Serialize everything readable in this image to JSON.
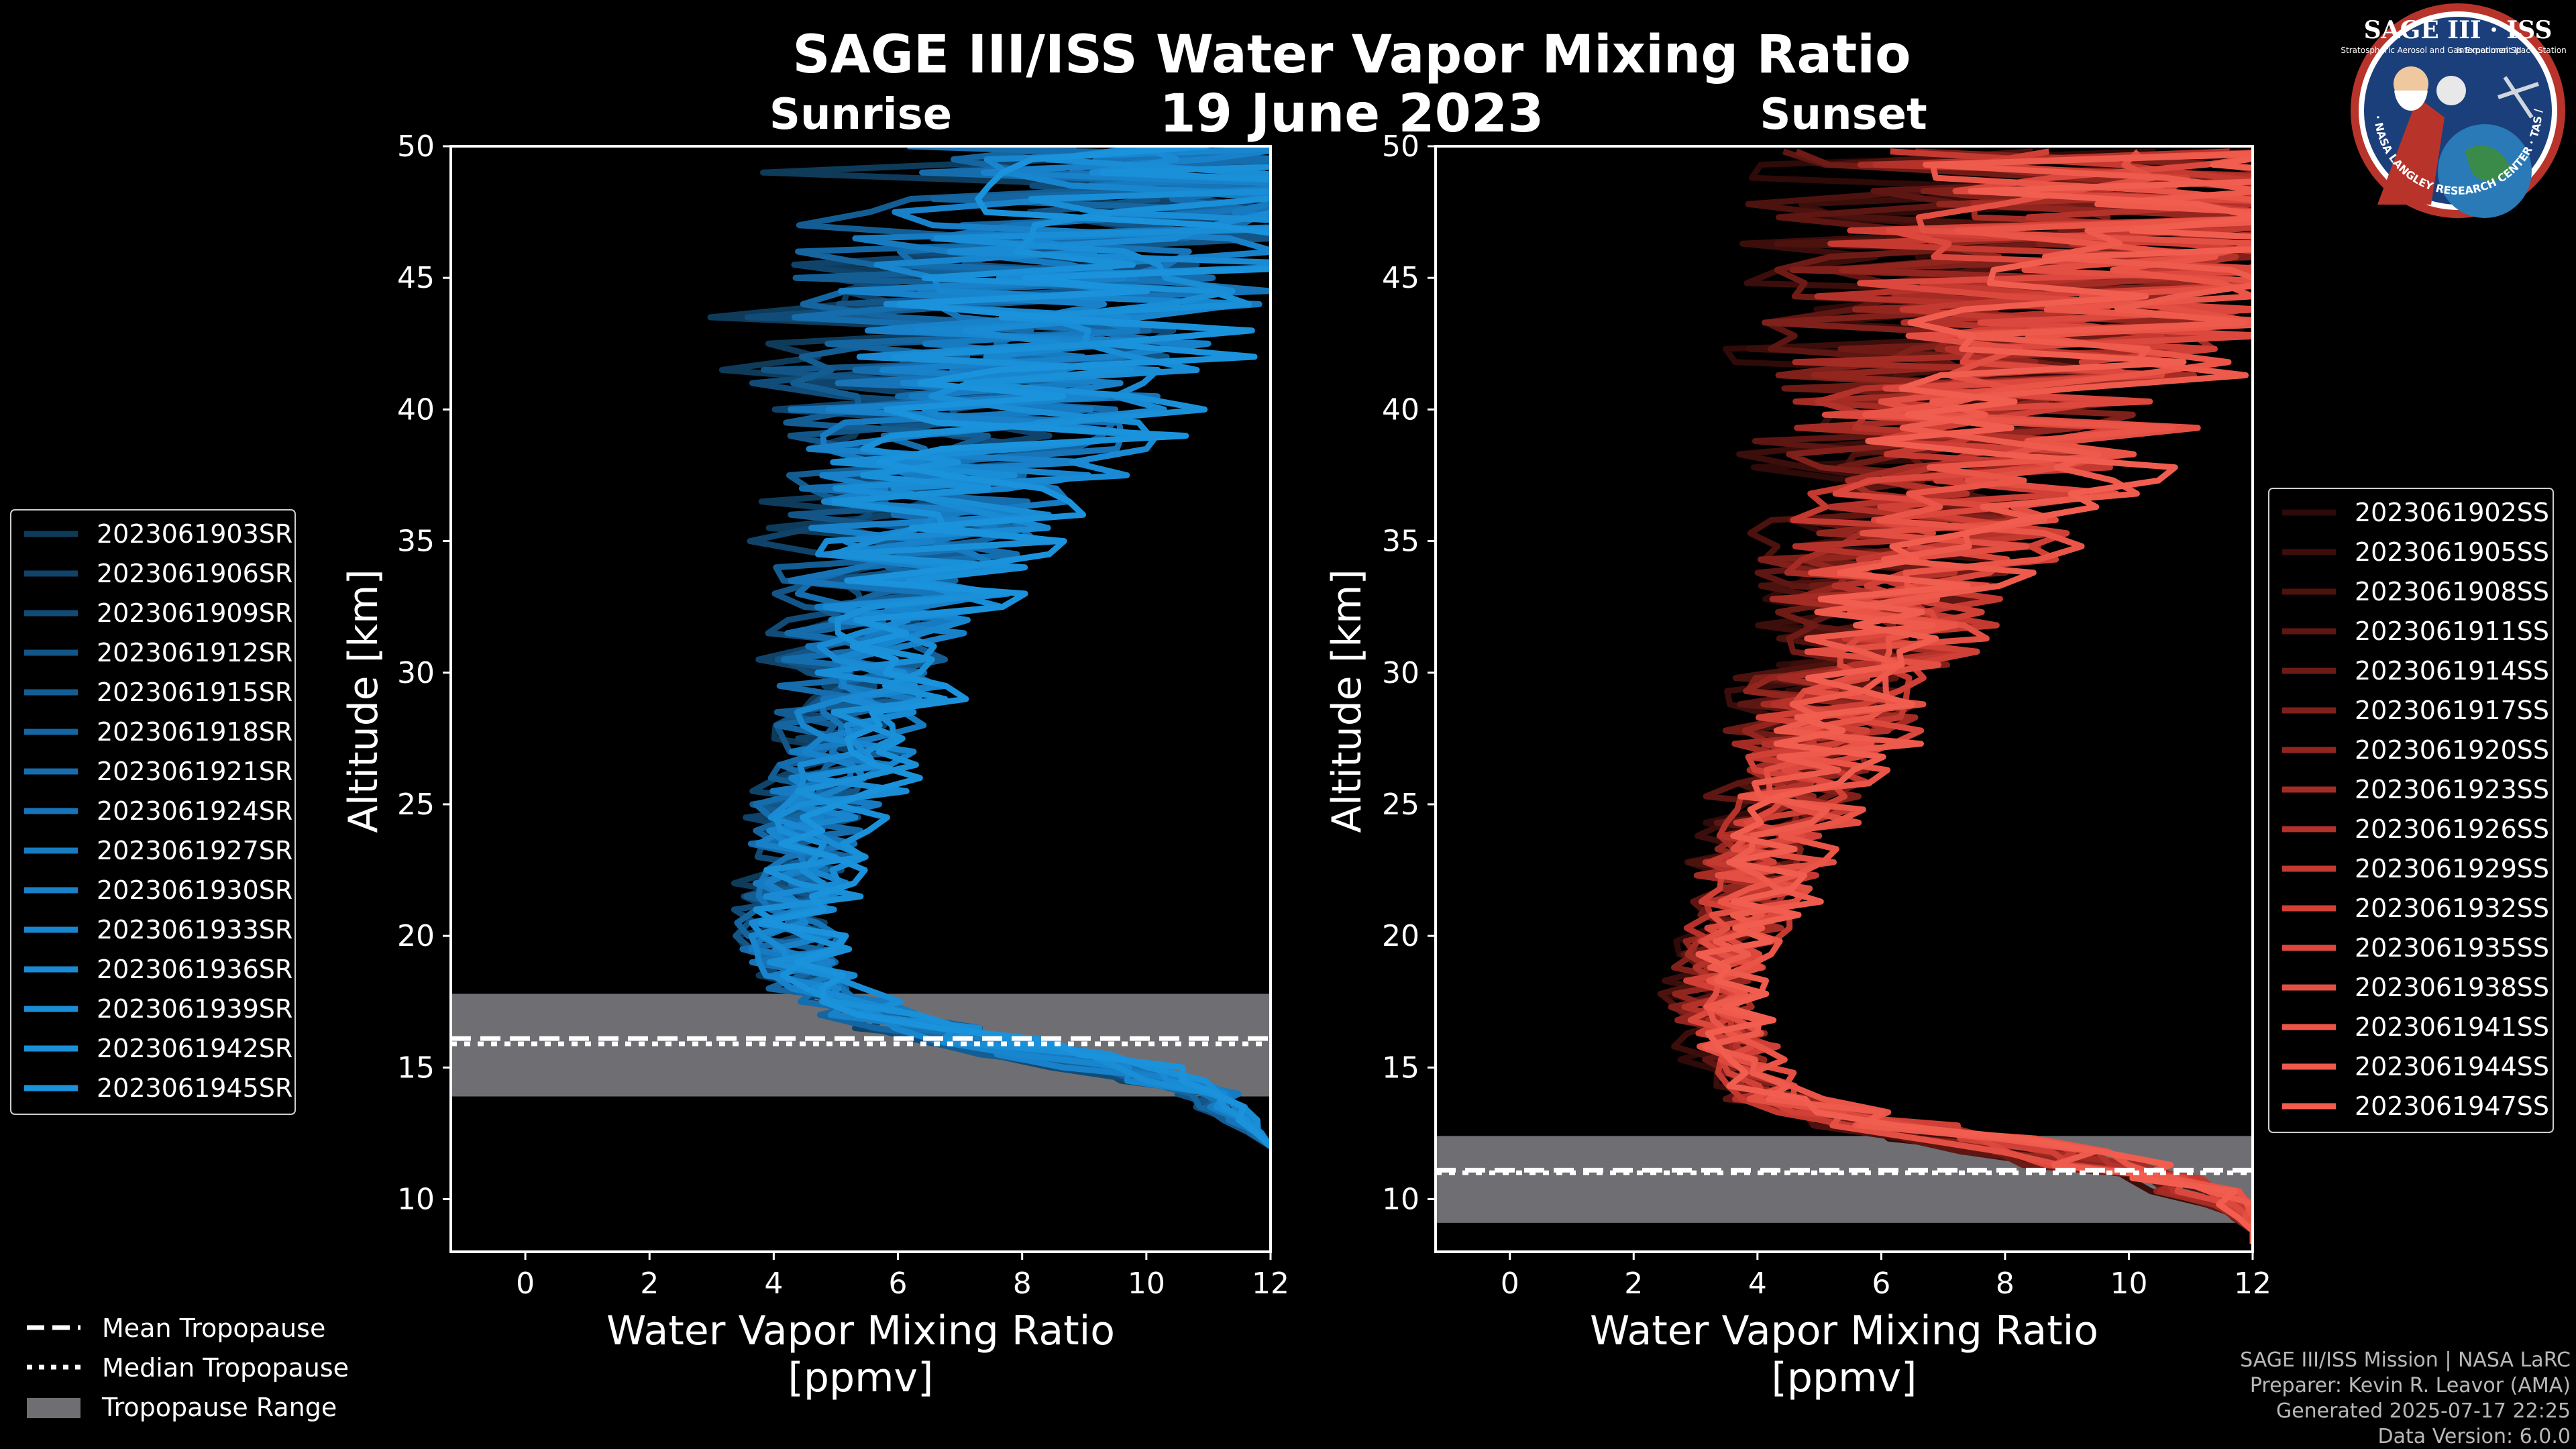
{
  "title": "SAGE III/ISS Water Vapor Mixing Ratio",
  "date": "19 June 2023",
  "logo": {
    "line1": "SAGE III",
    "line2": "ISS",
    "ring": "BALL · NASA LANGLEY RESEARCH CENTER · TAS / ESA",
    "sub1": "Stratospheric Aerosol and Gas Experiment III",
    "sub2": "International Space Station"
  },
  "legend_common": {
    "mean": "Mean Tropopause",
    "median": "Median Tropopause",
    "range": "Tropopause Range"
  },
  "credits": [
    "SAGE III/ISS Mission | NASA LaRC",
    "Preparer: Kevin R. Leavor (AMA)",
    "Generated 2025-07-17 22:25",
    "Data Version: 6.0.0"
  ],
  "colors": {
    "background": "#000000",
    "sunrise": "#1a8fd1",
    "sunset": "#ef5b4b",
    "range": "#6f6f73"
  },
  "chart_data": [
    {
      "type": "line",
      "subtitle": "Sunrise",
      "xlabel": "Water Vapor Mixing Ratio\n[ppmv]",
      "ylabel": "Altitude [km]",
      "xlim": [
        -1.2,
        12
      ],
      "ylim": [
        8,
        50
      ],
      "xticks": [
        0,
        2,
        4,
        6,
        8,
        10,
        12
      ],
      "yticks": [
        10,
        15,
        20,
        25,
        30,
        35,
        40,
        45,
        50
      ],
      "tropopause": {
        "mean": 16.1,
        "median": 15.9,
        "range": [
          13.9,
          17.8
        ]
      },
      "profile_shape": {
        "altitudes": [
          8,
          12,
          14,
          15,
          16,
          17,
          18,
          20,
          24,
          28,
          32,
          36,
          40,
          44,
          48,
          50
        ],
        "center": [
          12,
          12,
          11,
          9.5,
          7.5,
          5.6,
          4.6,
          4.2,
          4.6,
          5.3,
          5.8,
          6.4,
          7.2,
          8.2,
          9.5,
          10
        ],
        "spread": [
          0.0,
          0.0,
          0.4,
          0.8,
          0.9,
          0.7,
          0.6,
          0.7,
          0.8,
          1.0,
          1.3,
          1.8,
          2.5,
          3.2,
          3.6,
          3.8
        ]
      },
      "series": [
        {
          "name": "2023061903SR",
          "color": "#0e3b5a"
        },
        {
          "name": "2023061906SR",
          "color": "#10436a"
        },
        {
          "name": "2023061909SR",
          "color": "#114c78"
        },
        {
          "name": "2023061912SR",
          "color": "#135586"
        },
        {
          "name": "2023061915SR",
          "color": "#145d93"
        },
        {
          "name": "2023061918SR",
          "color": "#1565a0"
        },
        {
          "name": "2023061921SR",
          "color": "#166dad"
        },
        {
          "name": "2023061924SR",
          "color": "#1774b8"
        },
        {
          "name": "2023061927SR",
          "color": "#177bc2"
        },
        {
          "name": "2023061930SR",
          "color": "#1881c9"
        },
        {
          "name": "2023061933SR",
          "color": "#1886cf"
        },
        {
          "name": "2023061936SR",
          "color": "#198ad3"
        },
        {
          "name": "2023061939SR",
          "color": "#198dd6"
        },
        {
          "name": "2023061942SR",
          "color": "#1a90d9"
        },
        {
          "name": "2023061945SR",
          "color": "#1a93dc"
        }
      ]
    },
    {
      "type": "line",
      "subtitle": "Sunset",
      "xlabel": "Water Vapor Mixing Ratio\n[ppmv]",
      "ylabel": "Altitude [km]",
      "xlim": [
        -1.2,
        12
      ],
      "ylim": [
        8,
        50
      ],
      "xticks": [
        0,
        2,
        4,
        6,
        8,
        10,
        12
      ],
      "yticks": [
        10,
        15,
        20,
        25,
        30,
        35,
        40,
        45,
        50
      ],
      "tropopause": {
        "mean": 11.1,
        "median": 11.0,
        "range": [
          9.1,
          12.4
        ]
      },
      "profile_shape": {
        "altitudes": [
          8,
          9,
          10,
          11,
          12,
          13,
          14,
          16,
          18,
          20,
          24,
          28,
          32,
          36,
          40,
          44,
          48,
          50
        ],
        "center": [
          12,
          12,
          11.5,
          10,
          8,
          5.5,
          4.0,
          3.5,
          3.3,
          3.6,
          4.3,
          5.2,
          6.0,
          6.8,
          7.6,
          8.4,
          9.3,
          9.8
        ],
        "spread": [
          0.0,
          0.0,
          0.4,
          0.8,
          1.0,
          0.9,
          0.5,
          0.6,
          0.6,
          0.7,
          0.9,
          1.2,
          1.5,
          2.0,
          2.6,
          3.2,
          3.6,
          3.8
        ]
      },
      "series": [
        {
          "name": "2023061902SS",
          "color": "#2e0a08"
        },
        {
          "name": "2023061905SS",
          "color": "#3b0e0b"
        },
        {
          "name": "2023061908SS",
          "color": "#4c120e"
        },
        {
          "name": "2023061911SS",
          "color": "#5d1612"
        },
        {
          "name": "2023061914SS",
          "color": "#6e1b16"
        },
        {
          "name": "2023061917SS",
          "color": "#80201a"
        },
        {
          "name": "2023061920SS",
          "color": "#92261f"
        },
        {
          "name": "2023061923SS",
          "color": "#a42c24"
        },
        {
          "name": "2023061926SS",
          "color": "#b5322a"
        },
        {
          "name": "2023061929SS",
          "color": "#c43930"
        },
        {
          "name": "2023061932SS",
          "color": "#d14036"
        },
        {
          "name": "2023061935SS",
          "color": "#dc483d"
        },
        {
          "name": "2023061938SS",
          "color": "#e44f43"
        },
        {
          "name": "2023061941SS",
          "color": "#ea5548"
        },
        {
          "name": "2023061944SS",
          "color": "#ee5a4c"
        },
        {
          "name": "2023061947SS",
          "color": "#f15e4f"
        }
      ]
    }
  ]
}
